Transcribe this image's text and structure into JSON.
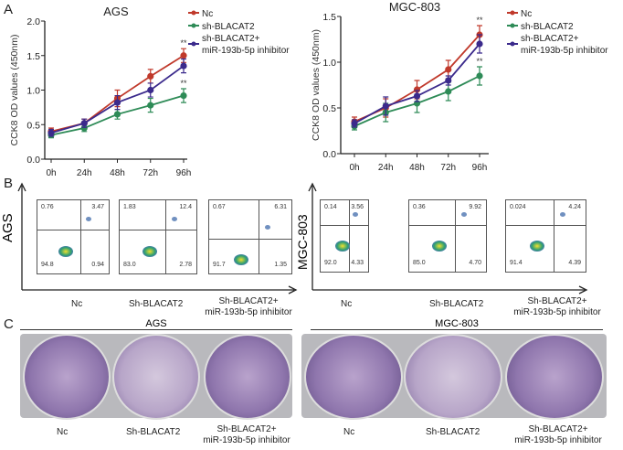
{
  "panel_labels": {
    "a": "A",
    "b": "B",
    "c": "C"
  },
  "chart_data": [
    {
      "type": "line",
      "title": "AGS",
      "ylabel": "CCK8 OD values (450nm)",
      "xlabel": "",
      "categories": [
        "0h",
        "24h",
        "48h",
        "72h",
        "96h"
      ],
      "ylim": [
        0,
        2.0
      ],
      "yticks": [
        "0.0",
        "0.5",
        "1.0",
        "1.5",
        "2.0"
      ],
      "legend": "top-right",
      "series": [
        {
          "name": "Nc",
          "color": "#c0392b",
          "values": [
            0.4,
            0.52,
            0.88,
            1.2,
            1.5
          ],
          "err": [
            0.05,
            0.06,
            0.12,
            0.1,
            0.1
          ]
        },
        {
          "name": "sh-BLACAT2",
          "color": "#2e8b57",
          "values": [
            0.35,
            0.45,
            0.65,
            0.78,
            0.92
          ],
          "err": [
            0.04,
            0.05,
            0.07,
            0.1,
            0.1
          ]
        },
        {
          "name": "sh-BLACAT2+ miR-193b-5p inhibitor",
          "color": "#3b2a8c",
          "values": [
            0.38,
            0.52,
            0.82,
            1.0,
            1.35
          ],
          "err": [
            0.05,
            0.06,
            0.1,
            0.1,
            0.1
          ]
        }
      ],
      "annotations": [
        "**",
        "**"
      ]
    },
    {
      "type": "line",
      "title": "MGC-803",
      "ylabel": "CCK8 OD values (450nm)",
      "xlabel": "",
      "categories": [
        "0h",
        "24h",
        "48h",
        "72h",
        "96h"
      ],
      "ylim": [
        0,
        1.5
      ],
      "yticks": [
        "0.0",
        "0.5",
        "1.0",
        "1.5"
      ],
      "legend": "top-right",
      "series": [
        {
          "name": "Nc",
          "color": "#c0392b",
          "values": [
            0.35,
            0.5,
            0.7,
            0.92,
            1.3
          ],
          "err": [
            0.05,
            0.1,
            0.1,
            0.1,
            0.1
          ]
        },
        {
          "name": "sh-BLACAT2",
          "color": "#2e8b57",
          "values": [
            0.3,
            0.45,
            0.55,
            0.68,
            0.85
          ],
          "err": [
            0.04,
            0.1,
            0.1,
            0.1,
            0.1
          ]
        },
        {
          "name": "sh-BLACAT2+ miR-193b-5p inhibitor",
          "color": "#3b2a8c",
          "values": [
            0.33,
            0.52,
            0.63,
            0.8,
            1.2
          ],
          "err": [
            0.04,
            0.1,
            0.06,
            0.05,
            0.1
          ]
        }
      ],
      "annotations": [
        "**",
        "**"
      ]
    }
  ],
  "flow": {
    "ags": {
      "label": "AGS",
      "plots": [
        {
          "q": [
            "0.76",
            "3.47",
            "94.8",
            "0.94"
          ]
        },
        {
          "q": [
            "1.83",
            "12.4",
            "83.0",
            "2.78"
          ]
        },
        {
          "q": [
            "0.67",
            "6.31",
            "91.7",
            "1.35"
          ]
        }
      ]
    },
    "mgc": {
      "label": "MGC-803",
      "plots": [
        {
          "q": [
            "0.14",
            "3.56",
            "92.0",
            "4.33"
          ]
        },
        {
          "q": [
            "0.36",
            "9.92",
            "85.0",
            "4.70"
          ]
        },
        {
          "q": [
            "0.024",
            "4.24",
            "91.4",
            "4.39"
          ]
        }
      ]
    },
    "groups": [
      "Nc",
      "Sh-BLACAT2",
      "Sh-BLACAT2+",
      "miR-193b-5p inhibitor"
    ]
  },
  "colony": {
    "ags": "AGS",
    "mgc": "MGC-803",
    "groups": [
      "Nc",
      "Sh-BLACAT2",
      "Sh-BLACAT2+",
      "miR-193b-5p inhibitor"
    ]
  }
}
